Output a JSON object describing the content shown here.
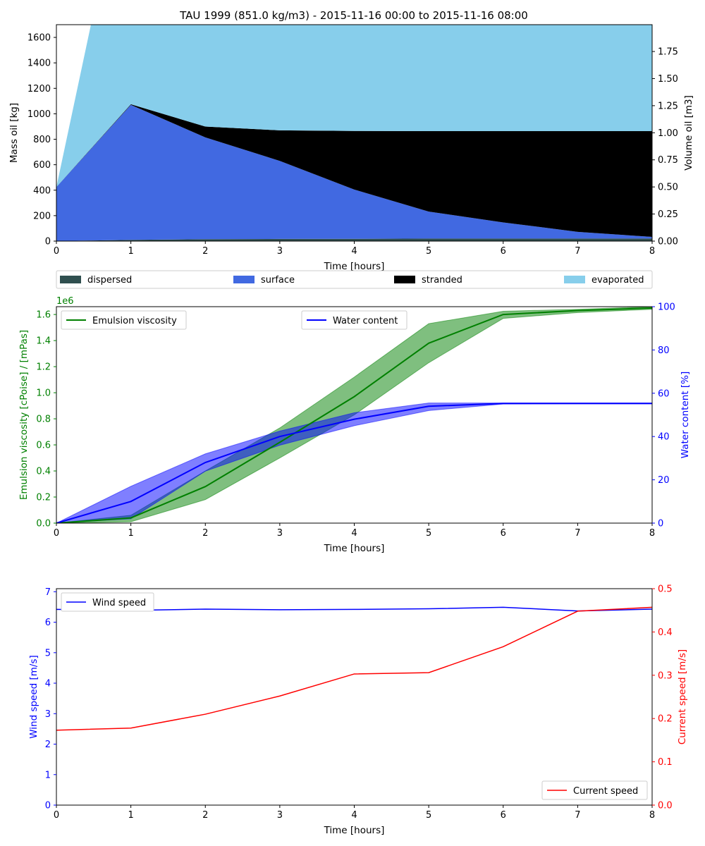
{
  "title": "TAU 1999 (851.0 kg/m3) - 2015-11-16 00:00 to 2015-11-16 08:00",
  "chart_data": [
    {
      "type": "area",
      "stacked": true,
      "xlabel": "Time  [hours]",
      "ylabel": "Mass oil  [kg]",
      "ylabel_right": "Volume oil [m3]",
      "x": [
        0,
        1,
        2,
        3,
        4,
        5,
        6,
        7,
        8
      ],
      "xlim": [
        0,
        8
      ],
      "ylim": [
        0,
        1700
      ],
      "ylim_right": [
        0,
        1.9976
      ],
      "xticks": [
        "0",
        "1",
        "2",
        "3",
        "4",
        "5",
        "6",
        "7",
        "8"
      ],
      "yticks": [
        "0",
        "200",
        "400",
        "600",
        "800",
        "1000",
        "1200",
        "1400",
        "1600"
      ],
      "yticks_right": [
        "0.00",
        "0.25",
        "0.50",
        "0.75",
        "1.00",
        "1.25",
        "1.50",
        "1.75"
      ],
      "series": [
        {
          "name": "dispersed",
          "color": "#2f4f4f",
          "values": [
            0,
            10,
            15,
            17,
            18,
            20,
            20,
            20,
            20
          ]
        },
        {
          "name": "surface",
          "color": "#4169e1",
          "values": [
            425,
            1060,
            800,
            613,
            387,
            212,
            127,
            53,
            13
          ]
        },
        {
          "name": "stranded",
          "color": "#000000",
          "values": [
            0,
            5,
            85,
            240,
            460,
            632,
            717,
            791,
            831
          ]
        },
        {
          "name": "evaporated",
          "color": "#87ceeb",
          "values": [
            0,
            2100,
            1800,
            1700,
            1700,
            1700,
            1700,
            1700,
            1700
          ]
        }
      ],
      "legend_placement": "below"
    },
    {
      "type": "line",
      "xlabel": "Time [hours]",
      "ylabel": "Emulsion viscosity  [cPoise] / [mPas]",
      "ylabel_right": "Water content  [%]",
      "offset_label": "1e6",
      "x": [
        0,
        1,
        2,
        3,
        4,
        5,
        6,
        7,
        8
      ],
      "xlim": [
        0,
        8
      ],
      "ylim": [
        0,
        1.66
      ],
      "ylim_right": [
        0,
        100
      ],
      "xticks": [
        "0",
        "1",
        "2",
        "3",
        "4",
        "5",
        "6",
        "7",
        "8"
      ],
      "yticks": [
        "0.0",
        "0.2",
        "0.4",
        "0.6",
        "0.8",
        "1.0",
        "1.2",
        "1.4",
        "1.6"
      ],
      "yticks_right": [
        "0",
        "20",
        "40",
        "60",
        "80",
        "100"
      ],
      "series": [
        {
          "name": "Emulsion viscosity",
          "axis": "left",
          "color": "#008000",
          "values": [
            0,
            0.04,
            0.28,
            0.62,
            0.97,
            1.38,
            1.6,
            1.63,
            1.65
          ],
          "lower": [
            0,
            0.01,
            0.18,
            0.5,
            0.83,
            1.23,
            1.57,
            1.615,
            1.64
          ],
          "upper": [
            0,
            0.06,
            0.4,
            0.73,
            1.12,
            1.53,
            1.625,
            1.64,
            1.66
          ]
        },
        {
          "name": "Water content",
          "axis": "right",
          "color": "#0000ff",
          "values": [
            0,
            10,
            28,
            40,
            48,
            54,
            55.3,
            55.3,
            55.3
          ],
          "lower": [
            0,
            2,
            24,
            36,
            45,
            52,
            55,
            55.1,
            55.1
          ],
          "upper": [
            0,
            17,
            32,
            42.5,
            51,
            55.5,
            55.5,
            55.5,
            55.5
          ]
        }
      ],
      "legend_placement": "top-left and top-center"
    },
    {
      "type": "line",
      "xlabel": "Time  [hours]",
      "ylabel": "Wind speed  [m/s]",
      "ylabel_right": "Current speed  [m/s]",
      "x": [
        0,
        1,
        2,
        3,
        4,
        5,
        6,
        7,
        8
      ],
      "xlim": [
        0,
        8
      ],
      "ylim": [
        0,
        7.1
      ],
      "ylim_right": [
        0,
        0.5
      ],
      "xticks": [
        "0",
        "1",
        "2",
        "3",
        "4",
        "5",
        "6",
        "7",
        "8"
      ],
      "yticks": [
        "0",
        "1",
        "2",
        "3",
        "4",
        "5",
        "6",
        "7"
      ],
      "yticks_right": [
        "0.0",
        "0.1",
        "0.2",
        "0.3",
        "0.4",
        "0.5"
      ],
      "series": [
        {
          "name": "Wind speed",
          "axis": "left",
          "color": "#0000ff",
          "values": [
            6.42,
            6.39,
            6.43,
            6.41,
            6.42,
            6.44,
            6.49,
            6.37,
            6.43
          ]
        },
        {
          "name": "Current speed",
          "axis": "right",
          "color": "#ff0000",
          "values": [
            0.173,
            0.178,
            0.21,
            0.252,
            0.303,
            0.306,
            0.366,
            0.448,
            0.457
          ]
        }
      ],
      "legend_placement": "top-left and bottom-right"
    }
  ]
}
